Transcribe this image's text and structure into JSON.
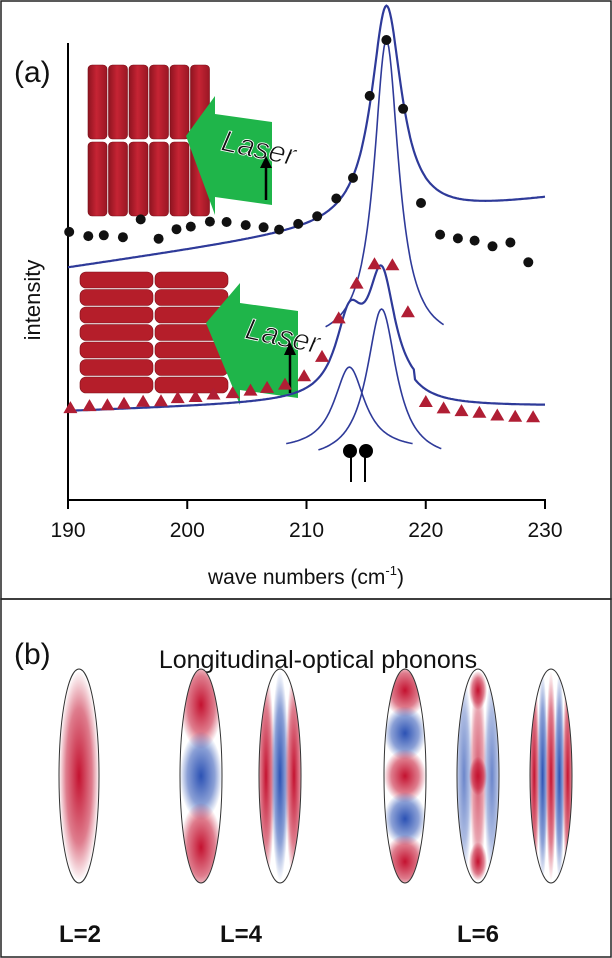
{
  "chart_data": [
    {
      "type": "scatter",
      "panel_label": "(a)",
      "xlabel": "wave numbers (cm",
      "xlabel_sup": "-1",
      "xlabel_close": ")",
      "ylabel": "intensity",
      "xlim": [
        190,
        230
      ],
      "xticks": [
        "190",
        "200",
        "210",
        "220",
        "230"
      ],
      "inset_label": "Laser",
      "series": [
        {
          "marker": "circle",
          "color": "#111111",
          "x": [
            190.1,
            191.7,
            193.0,
            194.6,
            196.1,
            197.6,
            199.1,
            200.3,
            201.9,
            203.3,
            204.9,
            206.4,
            207.7,
            209.3,
            210.9,
            212.5,
            213.9,
            215.3,
            216.7,
            218.1,
            219.6,
            221.2,
            222.7,
            224.1,
            225.6,
            227.1,
            228.6
          ],
          "y": [
            0.495,
            0.484,
            0.486,
            0.481,
            0.528,
            0.477,
            0.502,
            0.509,
            0.522,
            0.521,
            0.513,
            0.507,
            0.501,
            0.516,
            0.536,
            0.583,
            0.637,
            0.853,
            1.0,
            0.819,
            0.571,
            0.488,
            0.478,
            0.472,
            0.457,
            0.467,
            0.415
          ]
        },
        {
          "marker": "triangle",
          "color": "#b01e34",
          "x": [
            190.2,
            191.8,
            193.3,
            194.7,
            196.3,
            197.8,
            199.2,
            200.7,
            202.2,
            203.8,
            205.3,
            206.7,
            208.2,
            209.8,
            211.3,
            212.7,
            214.2,
            215.7,
            217.2,
            218.5,
            220.0,
            221.5,
            223.0,
            224.5,
            226.0,
            227.5,
            229.0
          ],
          "y": [
            0.072,
            0.079,
            0.082,
            0.088,
            0.095,
            0.097,
            0.108,
            0.112,
            0.121,
            0.126,
            0.135,
            0.145,
            0.157,
            0.187,
            0.257,
            0.396,
            0.522,
            0.592,
            0.588,
            0.418,
            0.094,
            0.071,
            0.061,
            0.055,
            0.045,
            0.041,
            0.039
          ]
        }
      ]
    },
    {
      "type": "other",
      "panel_label": "(b)",
      "title": "Longitudinal-optical phonons",
      "groups": [
        {
          "label": "L=2",
          "modes": [
            [
              1
            ]
          ]
        },
        {
          "label": "L=4",
          "modes": [
            [
              1,
              -1,
              1
            ],
            [
              1,
              -1,
              1
            ]
          ]
        },
        {
          "label": "L=6",
          "modes": [
            [
              1,
              -1,
              1,
              -1,
              1
            ],
            [
              1,
              -1,
              1,
              -1,
              1
            ],
            [
              1,
              -1,
              1,
              -1,
              1
            ]
          ]
        }
      ]
    }
  ],
  "colors": {
    "fit_line": "#2e3a99",
    "red_marker": "#b01e34",
    "rod_red": "#b51e2a",
    "laser_green": "#1fb54a",
    "mode_red": "#c41230",
    "mode_blue": "#2c52b4"
  }
}
